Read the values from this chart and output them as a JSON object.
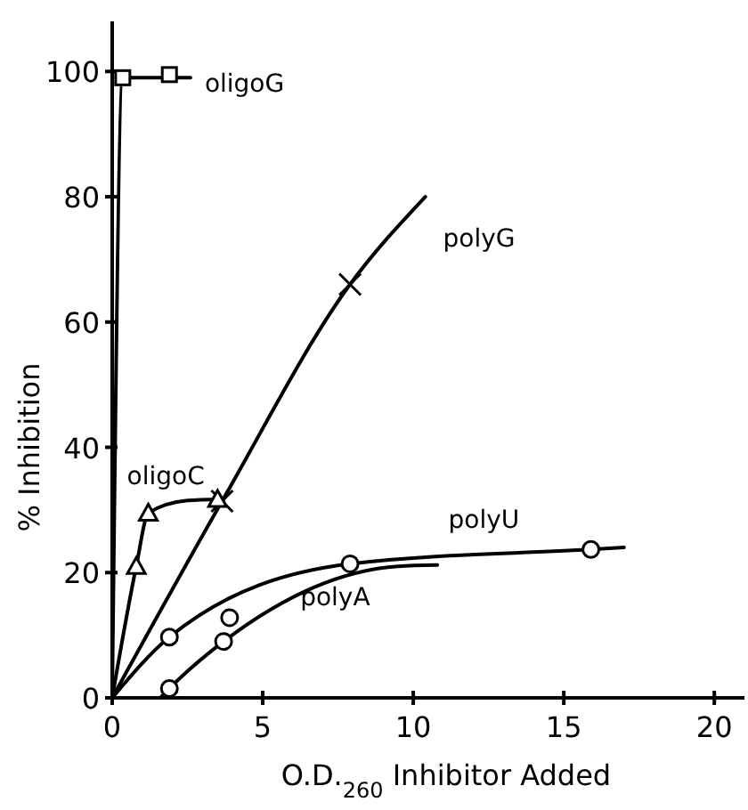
{
  "chart_data": {
    "type": "line",
    "xlabel": "O.D.$_{260}$ Inhibitor Added",
    "ylabel": "% Inhibition",
    "xlim": [
      0,
      21
    ],
    "xticks": [
      0,
      5,
      10,
      15,
      20
    ],
    "ylim": [
      0,
      108
    ],
    "yticks": [
      0,
      20,
      40,
      60,
      80,
      100
    ],
    "grid": false,
    "line_style": "solid",
    "marker": "none",
    "series": [
      {
        "name": "oligoG",
        "color": "#000000",
        "x": [
          0,
          0.35,
          1.9,
          2.6
        ],
        "values": [
          0,
          99,
          99,
          99
        ]
      },
      {
        "name": "polyG",
        "color": "#000000",
        "x": [
          0,
          3.65,
          7.9,
          10.4
        ],
        "values": [
          0,
          31.4,
          66,
          80
        ]
      },
      {
        "name": "oligoC",
        "color": "#000000",
        "x": [
          0,
          0.8,
          1.2,
          2.5,
          3.5
        ],
        "values": [
          0,
          21,
          29.5,
          31.5,
          31.7
        ]
      },
      {
        "name": "polyU",
        "color": "#000000",
        "x": [
          0,
          1.9,
          7.9,
          15.9,
          17
        ],
        "values": [
          0,
          9.7,
          21.4,
          23.7,
          24
        ]
      },
      {
        "name": "polyA",
        "color": "#000000",
        "x": [
          1.6,
          1.9,
          3.7,
          9.5,
          10.8
        ],
        "values": [
          0,
          1.5,
          9,
          21,
          21.2
        ]
      },
      {
        "type": "scatter",
        "marker": "square",
        "color": "#000000",
        "x": [
          0.35,
          1.9
        ],
        "values": [
          99,
          99.5
        ]
      },
      {
        "type": "scatter",
        "marker": "cross",
        "color": "#000000",
        "x": [
          3.65,
          7.9
        ],
        "values": [
          31.4,
          66
        ]
      },
      {
        "type": "scatter",
        "marker": "triangle",
        "color": "#000000",
        "x": [
          0.8,
          1.2,
          3.5
        ],
        "values": [
          21,
          29.5,
          31.7
        ]
      },
      {
        "type": "scatter",
        "marker": "circle",
        "color": "#000000",
        "x": [
          1.9,
          3.9,
          7.9,
          15.9
        ],
        "values": [
          9.7,
          12.8,
          21.4,
          23.7
        ]
      },
      {
        "type": "scatter",
        "marker": "circle",
        "color": "#000000",
        "x": [
          1.9,
          3.7
        ],
        "values": [
          1.5,
          9
        ]
      }
    ]
  }
}
